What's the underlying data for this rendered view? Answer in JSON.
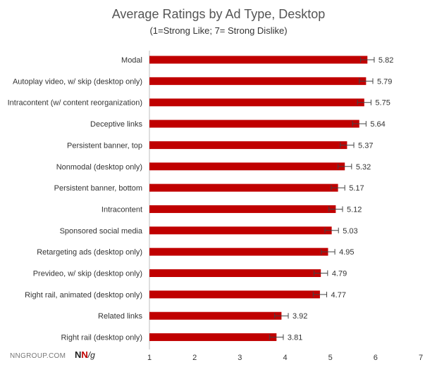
{
  "chart_data": {
    "type": "bar",
    "orientation": "horizontal",
    "title": "Average Ratings by Ad Type, Desktop",
    "subtitle": "(1=Strong Like; 7= Strong Dislike)",
    "categories": [
      "Modal",
      "Autoplay video, w/ skip (desktop only)",
      "Intracontent (w/ content reorganization)",
      "Deceptive links",
      "Persistent banner, top",
      "Nonmodal (desktop only)",
      "Persistent banner, bottom",
      "Intracontent",
      "Sponsored social media",
      "Retargeting ads (desktop only)",
      "Prevideo, w/ skip (desktop only)",
      "Right rail, animated (desktop only)",
      "Related links",
      "Right rail (desktop only)"
    ],
    "values": [
      5.82,
      5.79,
      5.75,
      5.64,
      5.37,
      5.32,
      5.17,
      5.12,
      5.03,
      4.95,
      4.79,
      4.77,
      3.92,
      3.81
    ],
    "value_labels": [
      "5.82",
      "5.79",
      "5.75",
      "5.64",
      "5.37",
      "5.32",
      "5.17",
      "5.12",
      "5.03",
      "4.95",
      "4.79",
      "4.77",
      "3.92",
      "3.81"
    ],
    "error": [
      0.15,
      0.15,
      0.15,
      0.15,
      0.15,
      0.15,
      0.15,
      0.15,
      0.15,
      0.15,
      0.15,
      0.15,
      0.15,
      0.15
    ],
    "xlim": [
      1,
      7
    ],
    "xticks": [
      "1",
      "2",
      "3",
      "4",
      "5",
      "6",
      "7"
    ],
    "xlabel": "",
    "ylabel": "",
    "grid": false,
    "legend": "none",
    "bar_color": "#c00000",
    "error_bar_color": "#444444"
  },
  "footer": {
    "source_text": "NNGROUP.COM",
    "logo_n1": "N",
    "logo_n2": "N",
    "logo_g": "/g"
  }
}
